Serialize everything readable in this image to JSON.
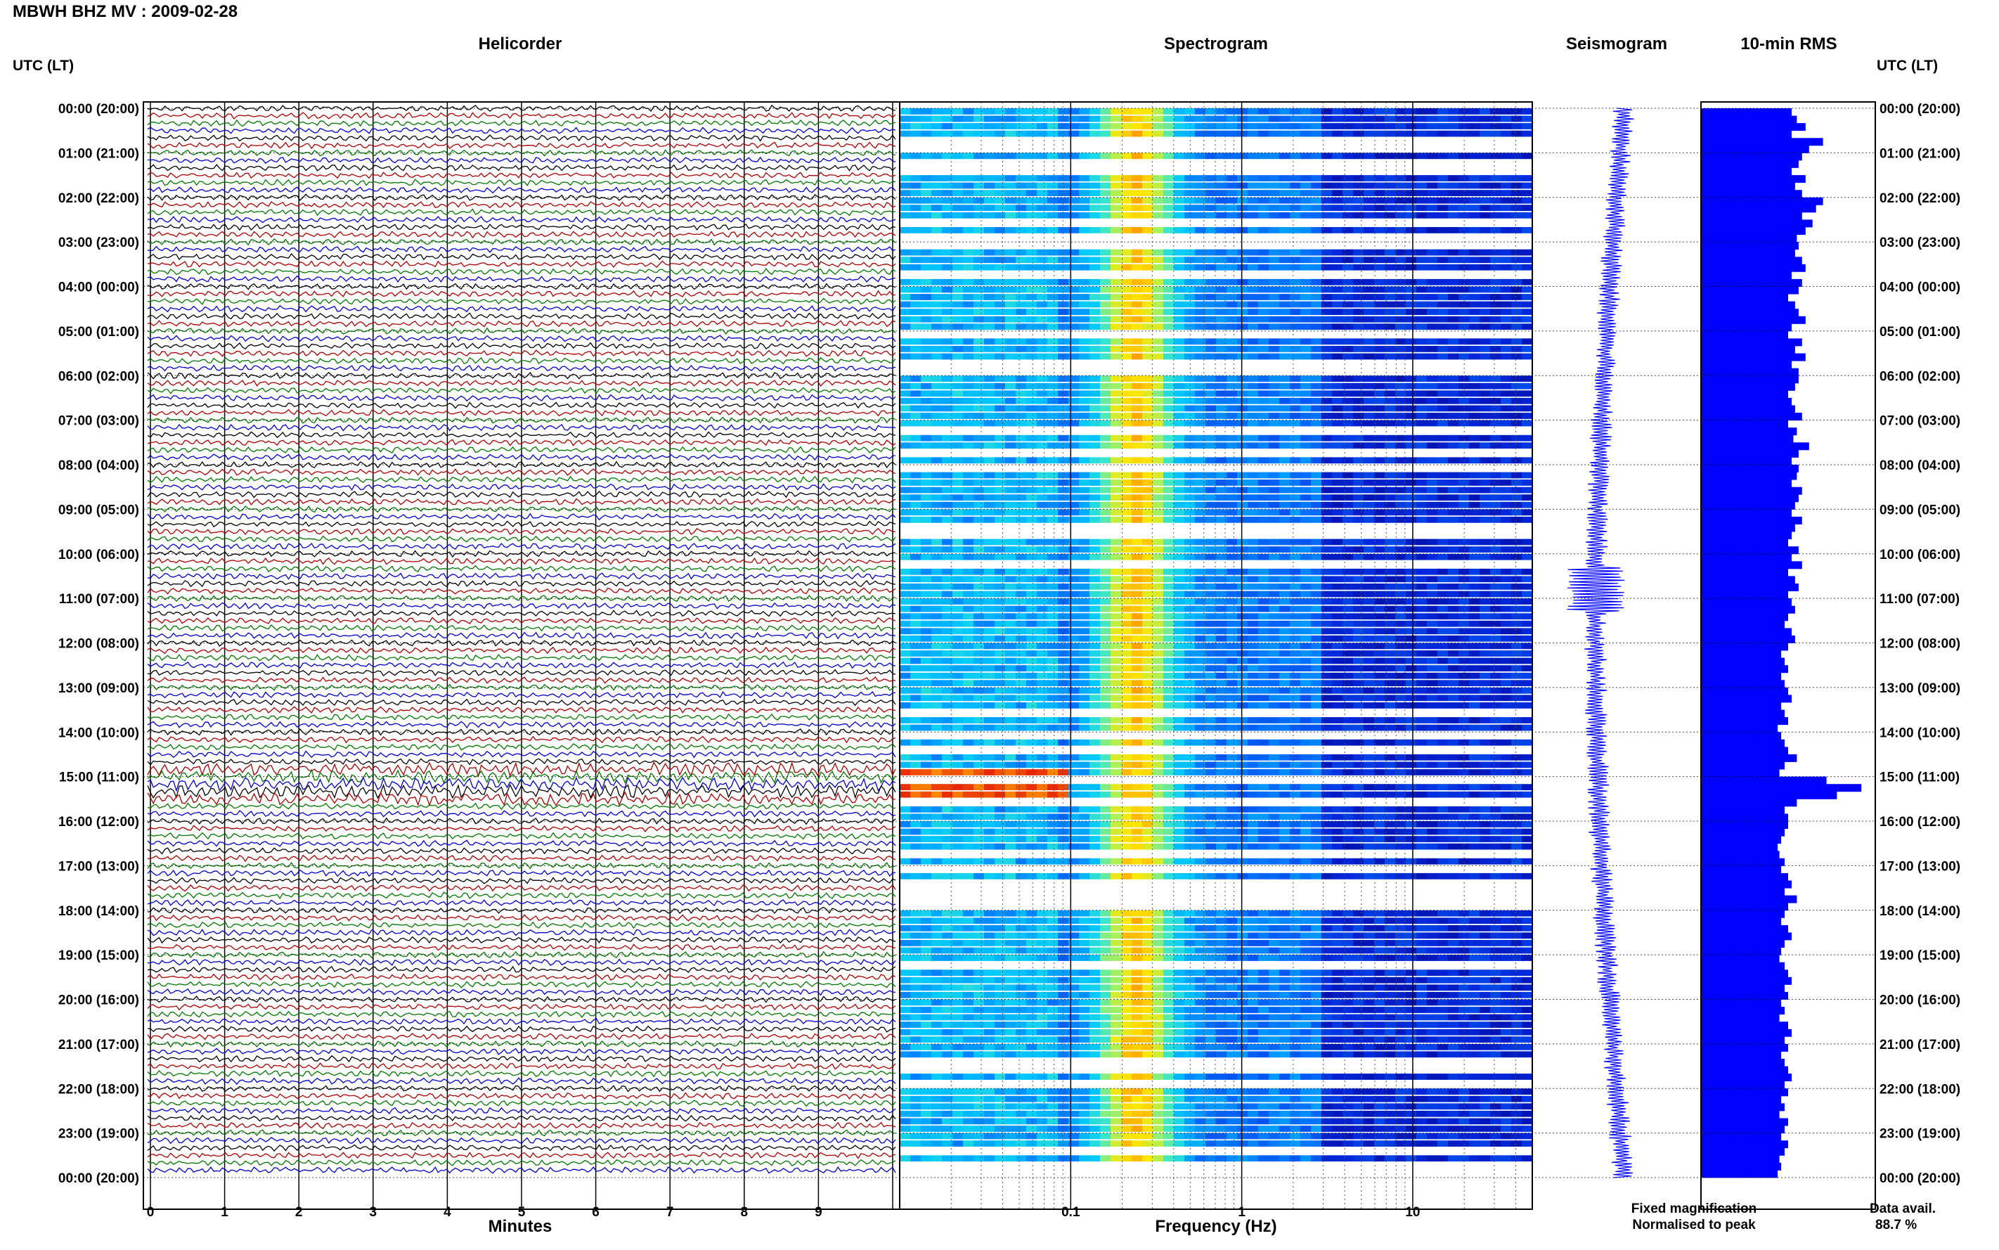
{
  "title": "MBWH BHZ MV : 2009-02-28",
  "panels": {
    "helicorder": "Helicorder",
    "spectrogram": "Spectrogram",
    "seismogram": "Seismogram",
    "rms": "10-min RMS"
  },
  "utc_label_left": "UTC (LT)",
  "utc_label_right": "UTC (LT)",
  "legend": {
    "fixed": "Fixed magnification",
    "fixed_color": "#0000ff",
    "normalised": "Normalised to peak",
    "normalised_color": "#ff0000"
  },
  "data_avail": {
    "label": "Data avail.",
    "value": "88.7 %"
  },
  "colors": {
    "trace_cycle": [
      "#000000",
      "#aa0000",
      "#007700",
      "#0000cc"
    ],
    "rms_bar": "#0000ff",
    "seismogram": "#0000ff"
  },
  "chart_data": [
    {
      "type": "line",
      "name": "helicorder",
      "xlabel": "Minutes",
      "xticks": [
        "0",
        "1",
        "2",
        "3",
        "4",
        "5",
        "6",
        "7",
        "8",
        "9"
      ],
      "xlim": [
        0,
        10
      ],
      "ytick_labels": [
        "00:00 (20:00)",
        "01:00 (21:00)",
        "02:00 (22:00)",
        "03:00 (23:00)",
        "04:00 (00:00)",
        "05:00 (01:00)",
        "06:00 (02:00)",
        "07:00 (03:00)",
        "08:00 (04:00)",
        "09:00 (05:00)",
        "10:00 (06:00)",
        "11:00 (07:00)",
        "12:00 (08:00)",
        "13:00 (09:00)",
        "14:00 (10:00)",
        "15:00 (11:00)",
        "16:00 (12:00)",
        "17:00 (13:00)",
        "18:00 (14:00)",
        "19:00 (15:00)",
        "20:00 (16:00)",
        "21:00 (17:00)",
        "22:00 (18:00)",
        "23:00 (19:00)",
        "00:00 (20:00)"
      ],
      "trace_count": 144
    },
    {
      "type": "heatmap",
      "name": "spectrogram",
      "xlabel": "Frequency (Hz)",
      "xscale": "log",
      "xticks": [
        "0.1",
        "1",
        "10"
      ],
      "xlim": [
        0.01,
        50
      ],
      "ylim_hours": [
        0,
        24
      ],
      "peak_band_hz": [
        0.2,
        0.3
      ]
    },
    {
      "type": "line",
      "name": "seismogram",
      "ylim_hours": [
        0,
        24
      ]
    },
    {
      "type": "bar",
      "name": "rms",
      "orientation": "horizontal",
      "interval_minutes": 10,
      "values_relative": [
        0.52,
        0.55,
        0.6,
        0.52,
        0.7,
        0.62,
        0.58,
        0.56,
        0.52,
        0.6,
        0.54,
        0.58,
        0.7,
        0.66,
        0.58,
        0.64,
        0.6,
        0.55,
        0.56,
        0.54,
        0.58,
        0.6,
        0.52,
        0.58,
        0.56,
        0.5,
        0.54,
        0.56,
        0.6,
        0.52,
        0.5,
        0.58,
        0.54,
        0.6,
        0.52,
        0.56,
        0.56,
        0.54,
        0.5,
        0.52,
        0.54,
        0.58,
        0.5,
        0.55,
        0.53,
        0.62,
        0.56,
        0.52,
        0.56,
        0.55,
        0.52,
        0.58,
        0.56,
        0.54,
        0.52,
        0.58,
        0.54,
        0.52,
        0.5,
        0.56,
        0.52,
        0.58,
        0.5,
        0.54,
        0.56,
        0.5,
        0.52,
        0.54,
        0.5,
        0.48,
        0.52,
        0.54,
        0.5,
        0.46,
        0.48,
        0.5,
        0.46,
        0.48,
        0.5,
        0.52,
        0.46,
        0.48,
        0.5,
        0.44,
        0.46,
        0.48,
        0.5,
        0.55,
        0.48,
        0.45,
        0.72,
        0.92,
        0.78,
        0.55,
        0.48,
        0.5,
        0.5,
        0.48,
        0.46,
        0.44,
        0.45,
        0.48,
        0.46,
        0.5,
        0.52,
        0.48,
        0.55,
        0.5,
        0.48,
        0.46,
        0.5,
        0.52,
        0.48,
        0.46,
        0.45,
        0.48,
        0.5,
        0.52,
        0.48,
        0.5,
        0.46,
        0.48,
        0.45,
        0.5,
        0.52,
        0.48,
        0.5,
        0.46,
        0.48,
        0.5,
        0.52,
        0.48,
        0.5,
        0.46,
        0.48,
        0.45,
        0.5,
        0.48,
        0.46,
        0.5,
        0.48,
        0.45,
        0.46,
        0.44
      ]
    }
  ]
}
